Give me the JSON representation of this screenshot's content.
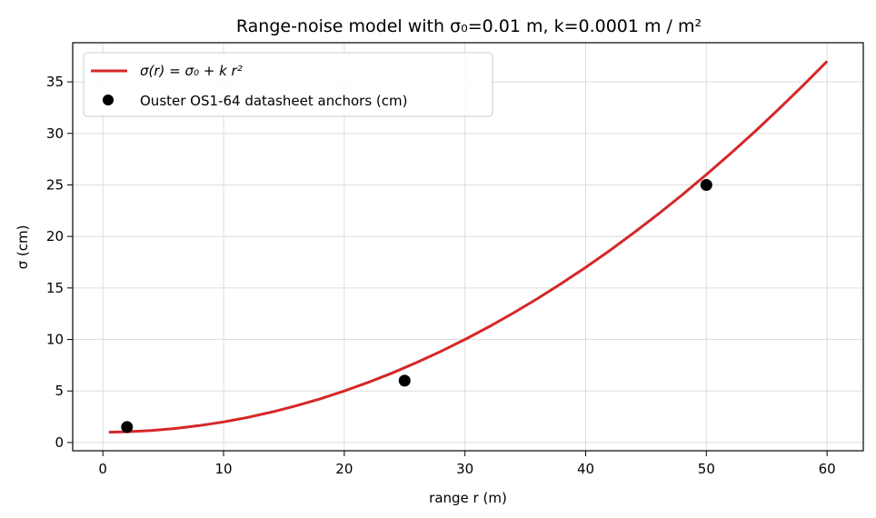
{
  "chart_data": {
    "type": "line",
    "title": "Range-noise model with σ₀=0.01 m, k=0.0001 m / m²",
    "xlabel": "range r (m)",
    "ylabel": "σ (cm)",
    "xlim": [
      -2.5,
      63
    ],
    "ylim": [
      -0.8,
      38.8
    ],
    "xticks": [
      0,
      10,
      20,
      30,
      40,
      50,
      60
    ],
    "yticks": [
      0,
      5,
      10,
      15,
      20,
      25,
      30,
      35
    ],
    "grid": true,
    "legend_position": "top-left",
    "series": [
      {
        "name": "σ(r) = σ₀ + k r²",
        "type": "line",
        "color": "#d62728",
        "x": [
          0.5,
          2,
          4,
          6,
          8,
          10,
          12,
          14,
          16,
          18,
          20,
          22,
          24,
          26,
          28,
          30,
          32,
          34,
          36,
          38,
          40,
          42,
          44,
          46,
          48,
          50,
          52,
          54,
          56,
          58,
          60
        ],
        "y": [
          1.0025,
          1.04,
          1.16,
          1.36,
          1.64,
          2.0,
          2.44,
          2.96,
          3.56,
          4.24,
          5.0,
          5.84,
          6.76,
          7.76,
          8.84,
          10.0,
          11.24,
          12.56,
          13.96,
          15.44,
          17.0,
          18.64,
          20.36,
          22.16,
          24.04,
          26.0,
          28.04,
          30.16,
          32.36,
          34.64,
          37.0
        ]
      },
      {
        "name": "Ouster OS1-64 datasheet anchors (cm)",
        "type": "scatter",
        "color": "#000000",
        "x": [
          2,
          25,
          50
        ],
        "y": [
          1.5,
          6.0,
          25.0
        ]
      }
    ]
  }
}
